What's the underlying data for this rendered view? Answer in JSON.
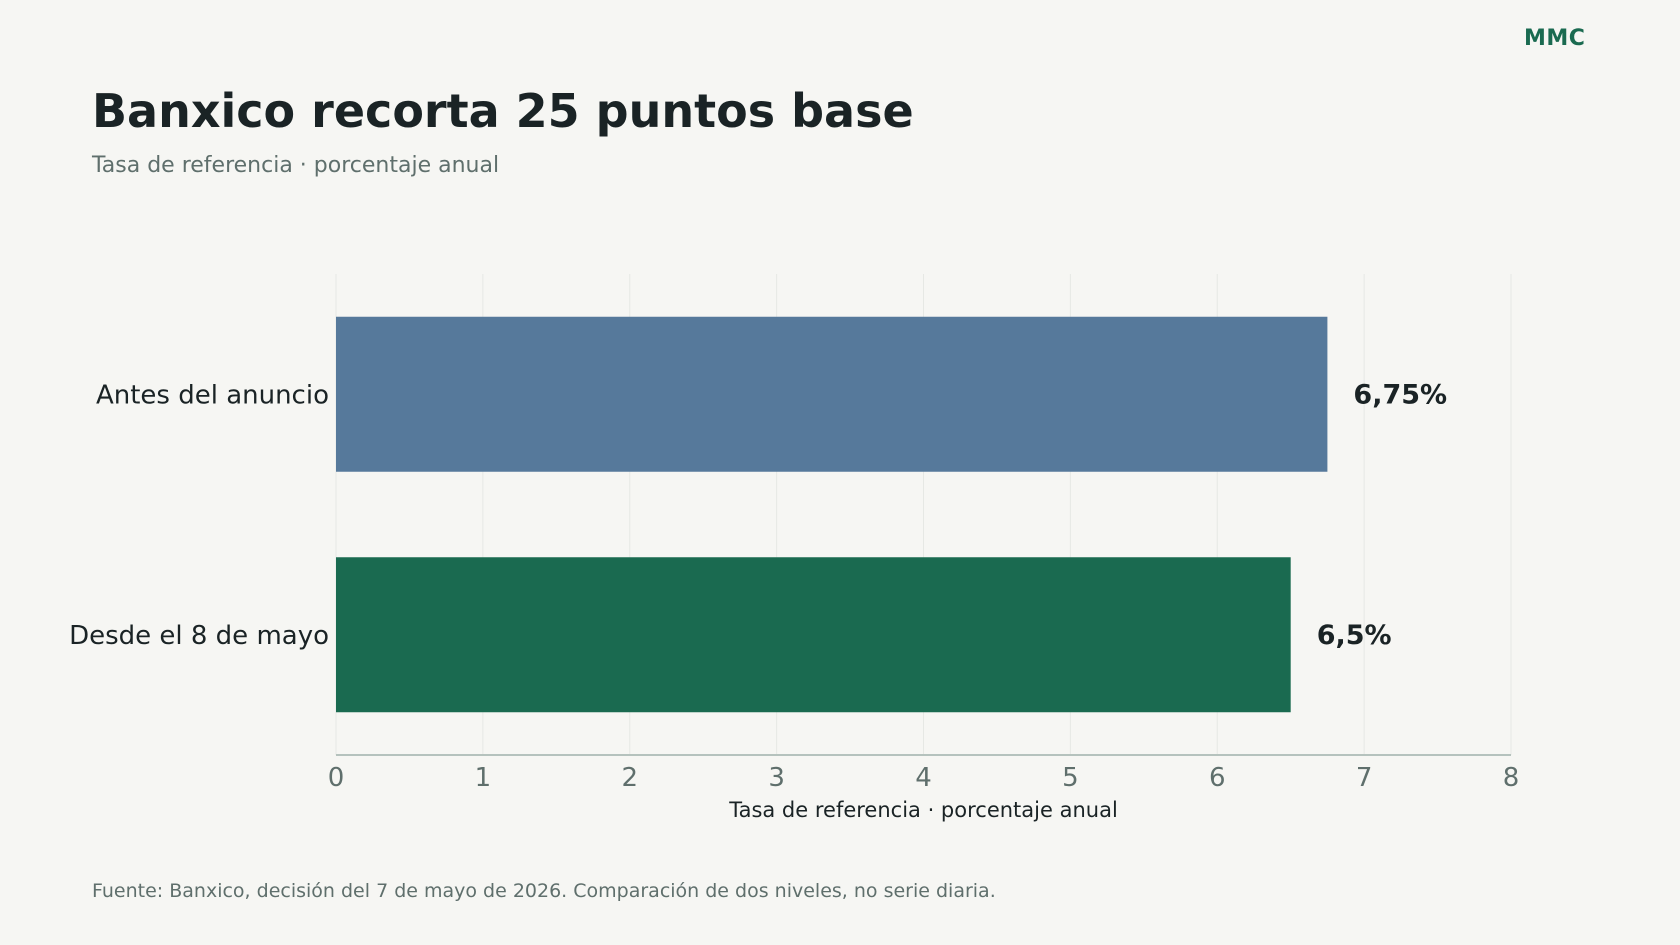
{
  "brand": "MMC",
  "title": "Banxico recorta 25 puntos base",
  "subtitle": "Tasa de referencia · porcentaje anual",
  "footer": "Fuente: Banxico, decisión del 7 de mayo de 2026. Comparación de dos niveles, no serie diaria.",
  "colors": {
    "background": "#f6f6f3",
    "brand": "#1a6a50",
    "grid": "#e6e8e4",
    "axis": "#b5c2bd"
  },
  "chart_data": {
    "type": "bar",
    "orientation": "horizontal",
    "categories": [
      "Antes del anuncio",
      "Desde el 8 de mayo"
    ],
    "values": [
      6.75,
      6.5
    ],
    "value_labels": [
      "6,75%",
      "6,5%"
    ],
    "bar_colors": [
      "#56799b",
      "#1a6a50"
    ],
    "xlabel": "Tasa de referencia · porcentaje anual",
    "xlim": [
      0,
      8
    ],
    "xticks": [
      0,
      1,
      2,
      3,
      4,
      5,
      6,
      7,
      8
    ],
    "grid": "vertical"
  }
}
